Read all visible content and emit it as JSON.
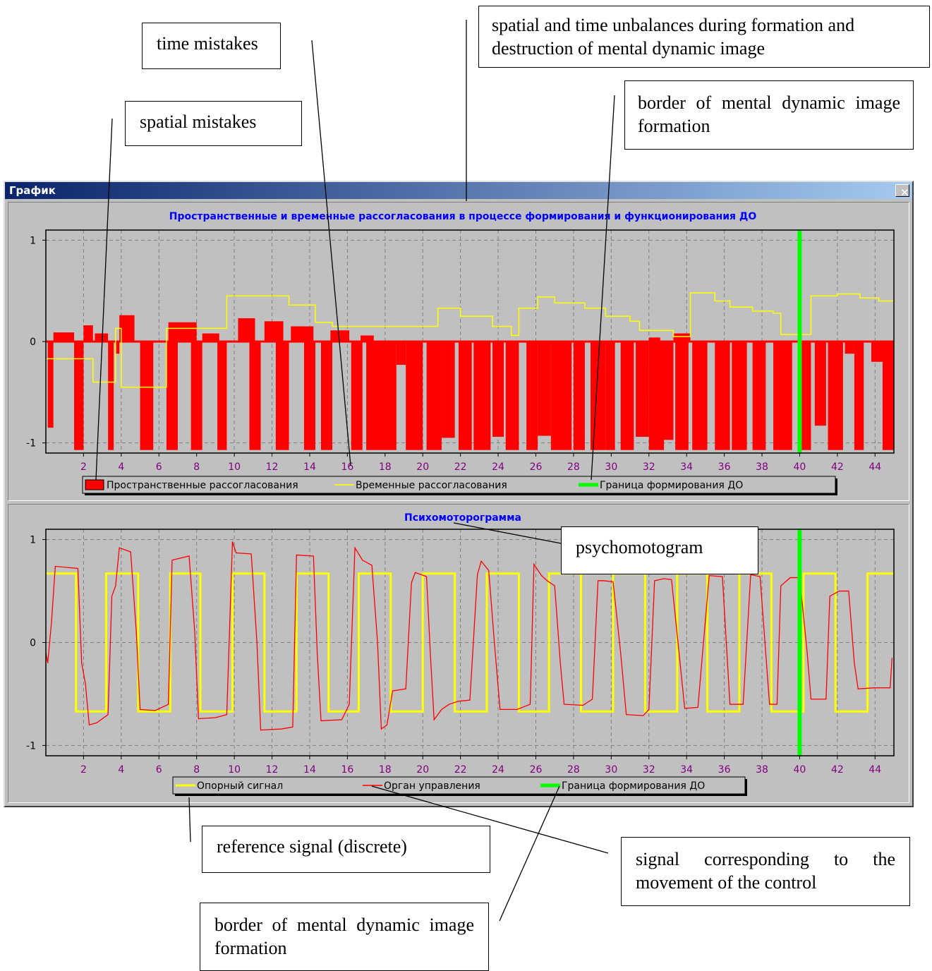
{
  "window": {
    "title": "График",
    "close_glyph": "✕"
  },
  "callouts": {
    "time_mistakes": "time mistakes",
    "spatial_mistakes": "spatial mistakes",
    "unbalances": "spatial and time unbalances during formation and destruction of mental dynamic image",
    "border_top": "border of mental dynamic image formation",
    "psychomotogram": "psychomotogram",
    "reference_signal": "reference signal (discrete)",
    "control_signal": "signal corresponding to the movement of the control",
    "border_bottom": "border of mental dynamic image formation"
  },
  "chart_data": [
    {
      "type": "bar",
      "title": "Пространственные и временные рассогласования в процессе формирования и функционирования ДО",
      "xlim": [
        0,
        45
      ],
      "ylim": [
        -1.1,
        1.1
      ],
      "yticks": [
        -1,
        0,
        1
      ],
      "xticks": [
        2,
        4,
        6,
        8,
        10,
        12,
        14,
        16,
        18,
        20,
        22,
        24,
        26,
        28,
        30,
        32,
        34,
        36,
        38,
        40,
        42,
        44
      ],
      "grid": true,
      "legend_position": "bottom",
      "colors": {
        "spatial": "#ff0000",
        "temporal": "#ffff00",
        "border": "#00ff00",
        "title": "#0000ff",
        "ticks": "#800080"
      },
      "series": [
        {
          "name": "Пространственные рассогласования",
          "kind": "bars",
          "bars": [
            [
              0.1,
              0.4,
              -0.85
            ],
            [
              0.4,
              1.5,
              0.09
            ],
            [
              1.5,
              2.0,
              -1.07
            ],
            [
              2.0,
              2.5,
              0.16
            ],
            [
              2.6,
              3.3,
              0.08
            ],
            [
              3.3,
              3.6,
              -1.07
            ],
            [
              3.7,
              3.9,
              -0.12
            ],
            [
              3.9,
              4.7,
              0.26
            ],
            [
              5.0,
              5.7,
              -1.07
            ],
            [
              6.4,
              7.0,
              -1.07
            ],
            [
              6.5,
              8.0,
              0.19
            ],
            [
              7.7,
              8.3,
              -1.07
            ],
            [
              8.3,
              9.2,
              0.08
            ],
            [
              9.1,
              9.6,
              -1.07
            ],
            [
              9.5,
              10.7,
              0.0
            ],
            [
              10.2,
              11.1,
              0.23
            ],
            [
              10.8,
              11.4,
              -1.07
            ],
            [
              11.6,
              12.6,
              0.2
            ],
            [
              12.2,
              12.9,
              -1.07
            ],
            [
              13.0,
              14.2,
              0.15
            ],
            [
              13.7,
              14.3,
              -1.07
            ],
            [
              14.6,
              15.2,
              -1.07
            ],
            [
              15.1,
              16.1,
              0.11
            ],
            [
              16.2,
              16.8,
              -1.07
            ],
            [
              16.7,
              17.4,
              0.06
            ],
            [
              17.0,
              18.1,
              -1.07
            ],
            [
              18.1,
              18.6,
              -1.07
            ],
            [
              18.6,
              19.1,
              -0.23
            ],
            [
              19.1,
              20.0,
              -1.07
            ],
            [
              20.2,
              21.0,
              -1.07
            ],
            [
              21.0,
              21.7,
              -0.95
            ],
            [
              21.9,
              22.6,
              -1.07
            ],
            [
              22.7,
              23.6,
              -1.07
            ],
            [
              23.7,
              24.3,
              -0.94
            ],
            [
              24.4,
              25.1,
              -1.07
            ],
            [
              25.5,
              26.1,
              -1.07
            ],
            [
              26.1,
              26.8,
              -0.93
            ],
            [
              26.8,
              27.9,
              -1.07
            ],
            [
              28.0,
              28.6,
              -1.07
            ],
            [
              28.9,
              29.7,
              -1.07
            ],
            [
              29.7,
              30.2,
              -1.07
            ],
            [
              30.5,
              31.2,
              -1.07
            ],
            [
              31.3,
              32.0,
              -0.94
            ],
            [
              32.0,
              32.6,
              0.04
            ],
            [
              32.0,
              32.8,
              -1.07
            ],
            [
              32.7,
              33.3,
              -0.97
            ],
            [
              33.3,
              34.2,
              0.08
            ],
            [
              33.4,
              34.1,
              -1.07
            ],
            [
              34.3,
              35.1,
              -1.07
            ],
            [
              35.5,
              36.3,
              -1.07
            ],
            [
              36.4,
              37.2,
              -1.07
            ],
            [
              37.5,
              38.2,
              -1.07
            ],
            [
              38.6,
              39.6,
              -1.07
            ],
            [
              39.9,
              40.6,
              -1.07
            ],
            [
              40.8,
              41.4,
              -0.83
            ],
            [
              41.5,
              42.3,
              -1.07
            ],
            [
              42.4,
              42.9,
              -0.12
            ],
            [
              42.9,
              43.4,
              -1.07
            ],
            [
              43.8,
              44.4,
              -0.2
            ],
            [
              44.4,
              45.0,
              -1.07
            ]
          ]
        },
        {
          "name": "Временные рассогласования",
          "kind": "step",
          "steps": [
            [
              0,
              -0.17
            ],
            [
              2.5,
              -0.4
            ],
            [
              3.7,
              0.13
            ],
            [
              4.0,
              -0.45
            ],
            [
              6.4,
              0.13
            ],
            [
              9.6,
              0.45
            ],
            [
              12.9,
              0.36
            ],
            [
              14.3,
              0.19
            ],
            [
              15.2,
              0.15
            ],
            [
              16.2,
              0.15
            ],
            [
              19.3,
              0.15
            ],
            [
              20.8,
              0.33
            ],
            [
              22.0,
              0.25
            ],
            [
              23.7,
              0.15
            ],
            [
              24.7,
              0.06
            ],
            [
              25.1,
              0.33
            ],
            [
              26.1,
              0.44
            ],
            [
              27.0,
              0.38
            ],
            [
              28.6,
              0.33
            ],
            [
              29.7,
              0.25
            ],
            [
              31.0,
              0.2
            ],
            [
              31.5,
              0.11
            ],
            [
              33.3,
              0.05
            ],
            [
              34.2,
              0.48
            ],
            [
              35.5,
              0.4
            ],
            [
              36.3,
              0.34
            ],
            [
              37.5,
              0.3
            ],
            [
              38.6,
              0.28
            ],
            [
              39.0,
              0.07
            ],
            [
              40.6,
              0.45
            ],
            [
              42.0,
              0.47
            ],
            [
              43.2,
              0.43
            ],
            [
              44.2,
              0.4
            ],
            [
              45,
              0.4
            ]
          ]
        },
        {
          "name": "Граница формирования ДО",
          "kind": "vline",
          "x": 40
        }
      ],
      "legend": [
        "Пространственные рассогласования",
        "Временные рассогласования",
        "Граница формирования ДО"
      ]
    },
    {
      "type": "line",
      "title": "Психомоторограмма",
      "xlim": [
        0,
        45
      ],
      "ylim": [
        -1.1,
        1.1
      ],
      "yticks": [
        -1,
        0,
        1
      ],
      "xticks": [
        2,
        4,
        6,
        8,
        10,
        12,
        14,
        16,
        18,
        20,
        22,
        24,
        26,
        28,
        30,
        32,
        34,
        36,
        38,
        40,
        42,
        44
      ],
      "grid": true,
      "legend_position": "bottom",
      "colors": {
        "reference": "#ffff00",
        "control": "#ff0000",
        "border": "#00ff00",
        "title": "#0000ff",
        "ticks": "#800080"
      },
      "series": [
        {
          "name": "Опорный сигнал",
          "kind": "square",
          "high": 0.67,
          "low": -0.67,
          "start": 0.67,
          "toggles": [
            1.6,
            3.2,
            4.9,
            6.6,
            8.2,
            9.9,
            11.6,
            13.3,
            15.0,
            16.6,
            18.3,
            20.0,
            21.7,
            23.4,
            25.1,
            26.7,
            28.4,
            30.1,
            31.8,
            33.5,
            35.1,
            36.8,
            38.5,
            40.2,
            41.9,
            43.6
          ]
        },
        {
          "name": "Орган управления",
          "kind": "line",
          "points": [
            [
              0,
              -0.1
            ],
            [
              0.1,
              -0.2
            ],
            [
              0.3,
              0.2
            ],
            [
              0.5,
              0.74
            ],
            [
              1.7,
              0.72
            ],
            [
              1.9,
              -0.2
            ],
            [
              2.1,
              -0.4
            ],
            [
              2.3,
              -0.8
            ],
            [
              2.7,
              -0.78
            ],
            [
              3.3,
              -0.7
            ],
            [
              3.5,
              0.45
            ],
            [
              3.7,
              0.55
            ],
            [
              3.9,
              0.92
            ],
            [
              4.5,
              0.88
            ],
            [
              4.8,
              0.1
            ],
            [
              5.0,
              -0.65
            ],
            [
              5.8,
              -0.66
            ],
            [
              6.5,
              -0.6
            ],
            [
              6.7,
              0.8
            ],
            [
              7.6,
              0.84
            ],
            [
              7.9,
              0.1
            ],
            [
              8.1,
              -0.74
            ],
            [
              9.0,
              -0.73
            ],
            [
              9.6,
              -0.7
            ],
            [
              9.9,
              0.98
            ],
            [
              10.1,
              0.87
            ],
            [
              10.9,
              0.86
            ],
            [
              11.2,
              0.0
            ],
            [
              11.4,
              -0.85
            ],
            [
              12.5,
              -0.84
            ],
            [
              13.1,
              -0.82
            ],
            [
              13.3,
              0.85
            ],
            [
              14.2,
              0.84
            ],
            [
              14.4,
              -0.1
            ],
            [
              14.6,
              -0.76
            ],
            [
              15.7,
              -0.75
            ],
            [
              16.1,
              -0.6
            ],
            [
              16.4,
              0.92
            ],
            [
              16.8,
              0.8
            ],
            [
              17.3,
              0.75
            ],
            [
              17.6,
              0.0
            ],
            [
              17.8,
              -0.84
            ],
            [
              18.1,
              -0.8
            ],
            [
              18.4,
              -0.47
            ],
            [
              19.1,
              -0.45
            ],
            [
              19.4,
              0.58
            ],
            [
              19.6,
              0.68
            ],
            [
              20.2,
              0.64
            ],
            [
              20.4,
              -0.1
            ],
            [
              20.6,
              -0.75
            ],
            [
              21.0,
              -0.65
            ],
            [
              21.4,
              -0.6
            ],
            [
              21.9,
              -0.57
            ],
            [
              22.5,
              -0.56
            ],
            [
              22.9,
              0.66
            ],
            [
              23.1,
              0.79
            ],
            [
              23.5,
              0.7
            ],
            [
              23.8,
              0.0
            ],
            [
              24.1,
              -0.65
            ],
            [
              25.0,
              -0.65
            ],
            [
              25.7,
              -0.6
            ],
            [
              25.9,
              0.76
            ],
            [
              26.3,
              0.65
            ],
            [
              26.6,
              0.6
            ],
            [
              27.0,
              0.55
            ],
            [
              27.3,
              -0.2
            ],
            [
              27.5,
              -0.6
            ],
            [
              28.5,
              -0.61
            ],
            [
              29.0,
              -0.55
            ],
            [
              29.3,
              0.6
            ],
            [
              29.6,
              0.6
            ],
            [
              30.1,
              0.59
            ],
            [
              30.5,
              -0.1
            ],
            [
              30.8,
              -0.7
            ],
            [
              31.7,
              -0.71
            ],
            [
              32.0,
              -0.65
            ],
            [
              32.3,
              0.6
            ],
            [
              32.8,
              0.62
            ],
            [
              33.2,
              0.61
            ],
            [
              33.6,
              -0.1
            ],
            [
              33.9,
              -0.64
            ],
            [
              34.6,
              -0.63
            ],
            [
              35.2,
              0.65
            ],
            [
              35.9,
              0.64
            ],
            [
              36.3,
              -0.6
            ],
            [
              37.0,
              -0.6
            ],
            [
              37.4,
              0.66
            ],
            [
              37.9,
              0.64
            ],
            [
              38.4,
              -0.6
            ],
            [
              38.8,
              -0.6
            ],
            [
              39.0,
              0.55
            ],
            [
              39.5,
              0.63
            ],
            [
              40.0,
              0.63
            ],
            [
              40.4,
              -0.1
            ],
            [
              40.6,
              -0.55
            ],
            [
              41.4,
              -0.55
            ],
            [
              41.6,
              0.45
            ],
            [
              42.1,
              0.5
            ],
            [
              42.6,
              0.5
            ],
            [
              42.9,
              -0.2
            ],
            [
              43.1,
              -0.45
            ],
            [
              44.0,
              -0.44
            ],
            [
              44.5,
              -0.44
            ],
            [
              44.8,
              -0.44
            ],
            [
              44.9,
              -0.15
            ]
          ]
        },
        {
          "name": "Граница формирования ДО",
          "kind": "vline",
          "x": 40
        }
      ],
      "legend": [
        "Опорный сигнал",
        "Орган управления",
        "Граница формирования ДО"
      ]
    }
  ]
}
